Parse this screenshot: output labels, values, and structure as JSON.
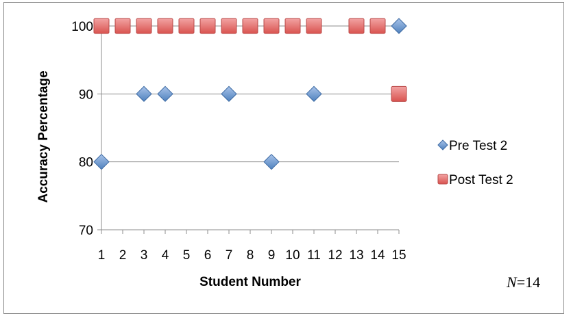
{
  "chart_data": {
    "type": "scatter",
    "title": "",
    "xlabel": "Student Number",
    "ylabel": "Accuracy Percentage",
    "x_ticks": [
      "1",
      "2",
      "3",
      "4",
      "5",
      "6",
      "7",
      "8",
      "9",
      "10",
      "11",
      "12",
      "13",
      "14",
      "15"
    ],
    "xlim": [
      1,
      15
    ],
    "y_ticks": [
      "70",
      "80",
      "90",
      "100"
    ],
    "ylim": [
      70,
      100
    ],
    "grid": "horizontal major gridlines",
    "legend_position": "right",
    "series": [
      {
        "name": "Pre Test 2",
        "marker": "diamond",
        "color": "#4f81bd",
        "points": [
          [
            1,
            80
          ],
          [
            3,
            90
          ],
          [
            4,
            90
          ],
          [
            7,
            90
          ],
          [
            9,
            80
          ],
          [
            11,
            90
          ],
          [
            15,
            100
          ]
        ]
      },
      {
        "name": "Post Test 2",
        "marker": "square",
        "color": "#e05b5b",
        "points": [
          [
            1,
            100
          ],
          [
            2,
            100
          ],
          [
            3,
            100
          ],
          [
            4,
            100
          ],
          [
            5,
            100
          ],
          [
            6,
            100
          ],
          [
            7,
            100
          ],
          [
            8,
            100
          ],
          [
            9,
            100
          ],
          [
            10,
            100
          ],
          [
            11,
            100
          ],
          [
            13,
            100
          ],
          [
            14,
            100
          ],
          [
            15,
            90
          ]
        ]
      }
    ],
    "annotation": {
      "italic": "N",
      "rest": "=14"
    }
  }
}
